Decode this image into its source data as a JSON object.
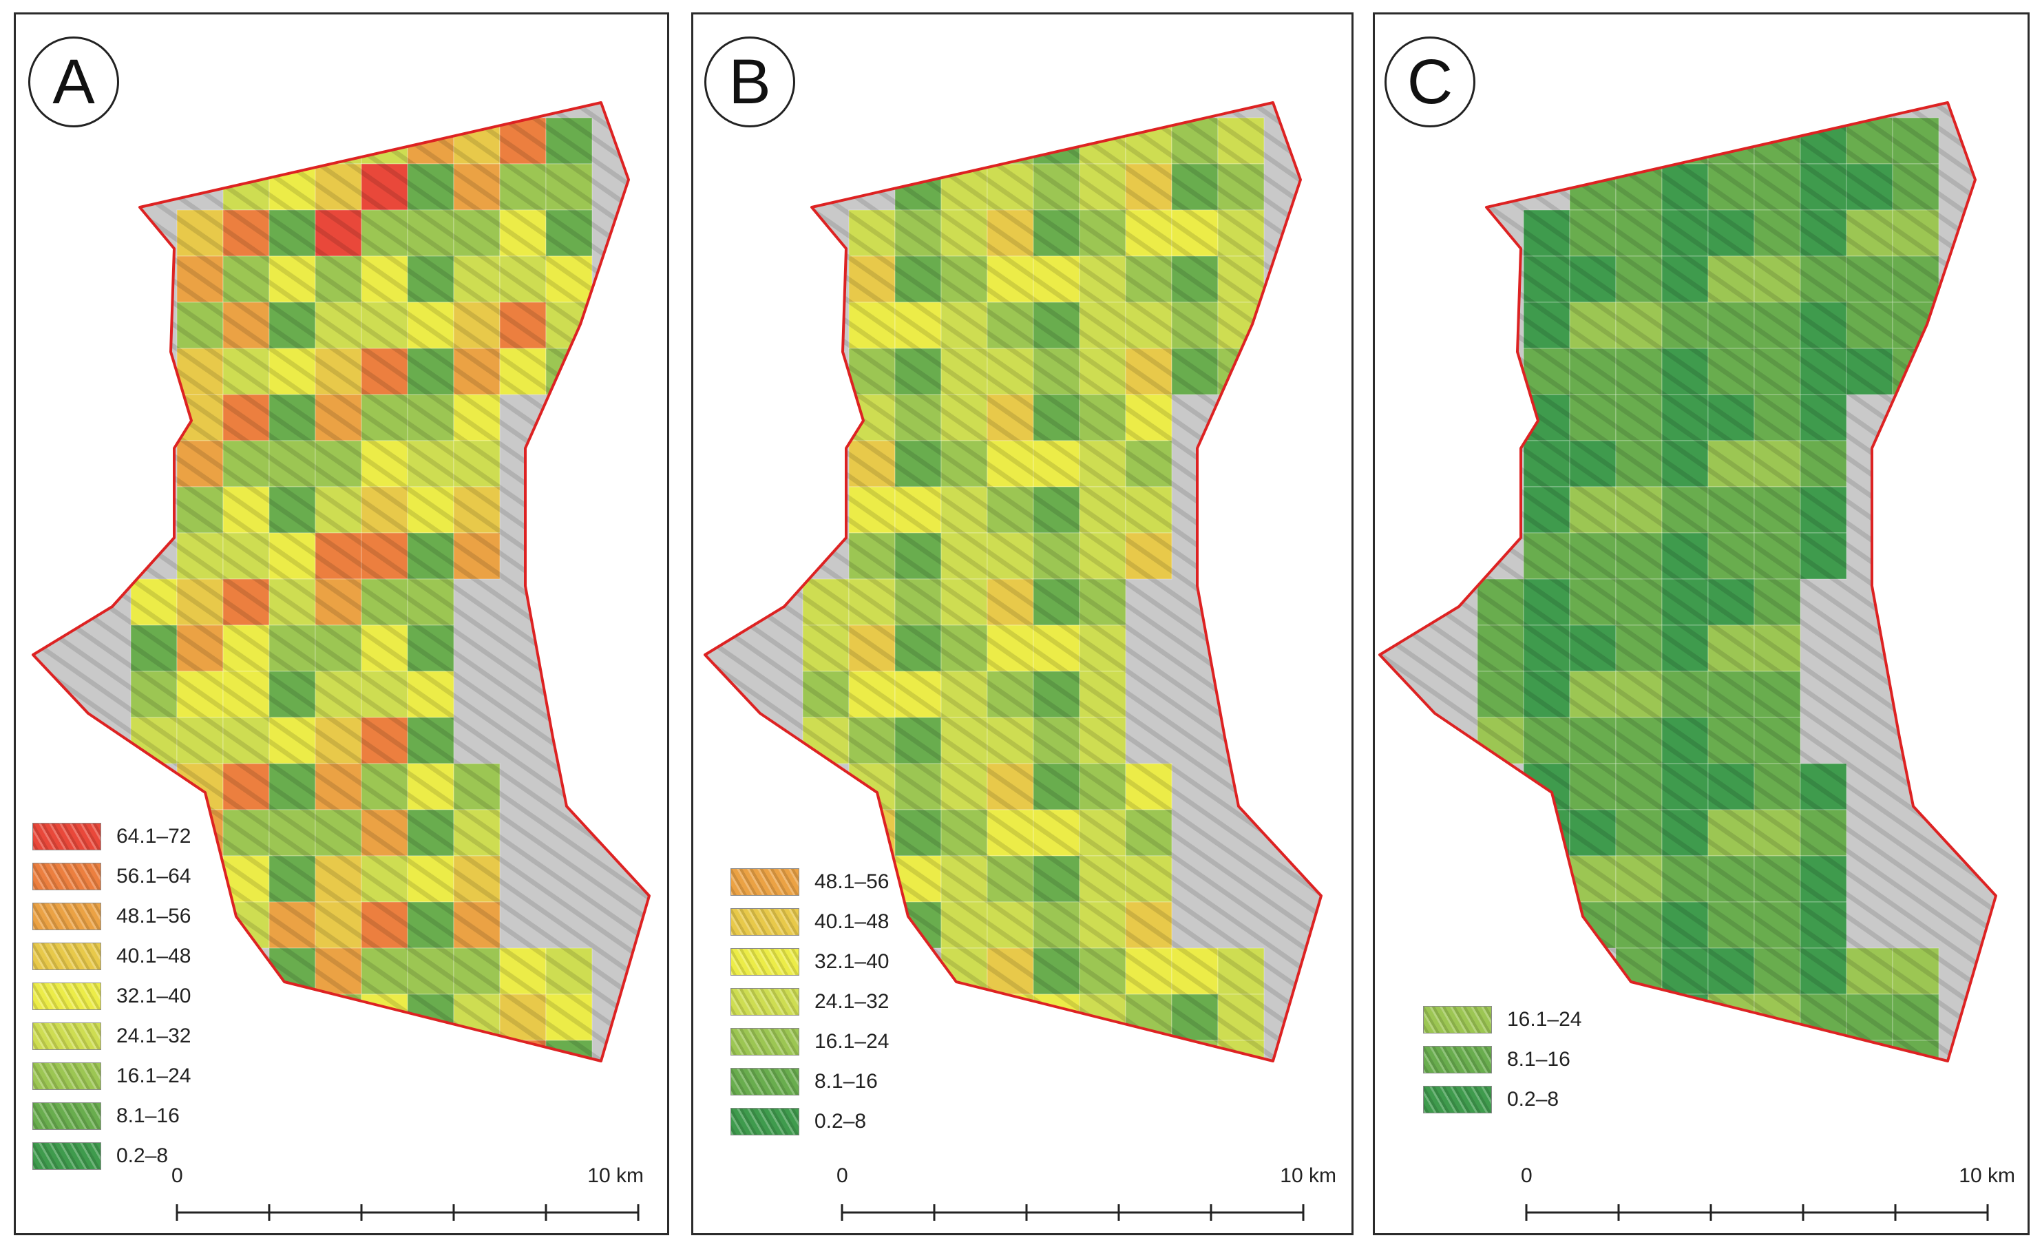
{
  "colors": {
    "boundary": "#dd2222",
    "hillshade": "#c9c9c9",
    "classes": [
      "#3f9b4d",
      "#69ad4e",
      "#9cc653",
      "#cedd52",
      "#ecec48",
      "#e8c94a",
      "#eba244",
      "#ec7f3f",
      "#e9483a"
    ]
  },
  "panels": [
    {
      "letter": "A",
      "legend": [
        "64.1–72",
        "56.1–64",
        "48.1–56",
        "40.1–48",
        "32.1–40",
        "24.1–32",
        "16.1–24",
        "8.1–16",
        "0.2–8"
      ],
      "legend_class_index": [
        8,
        7,
        6,
        5,
        4,
        3,
        2,
        1,
        0
      ],
      "scale": {
        "start": "0",
        "end": "10 km"
      }
    },
    {
      "letter": "B",
      "legend": [
        "48.1–56",
        "40.1–48",
        "32.1–40",
        "24.1–32",
        "16.1–24",
        "8.1–16",
        "0.2–8"
      ],
      "legend_class_index": [
        6,
        5,
        4,
        3,
        2,
        1,
        0
      ],
      "scale": {
        "start": "0",
        "end": "10 km"
      }
    },
    {
      "letter": "C",
      "legend": [
        "16.1–24",
        "8.1–16",
        "0.2–8"
      ],
      "legend_class_index": [
        2,
        1,
        0
      ],
      "scale": {
        "start": "0",
        "end": "10 km"
      }
    }
  ]
}
